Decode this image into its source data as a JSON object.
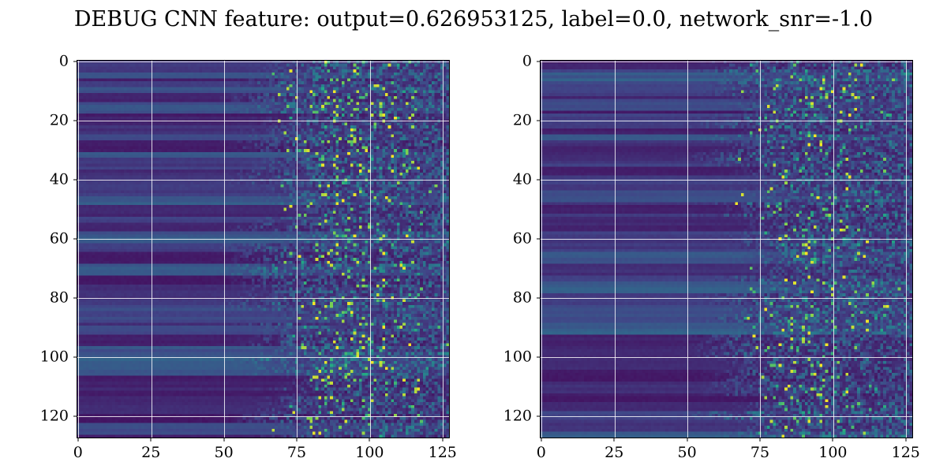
{
  "figure": {
    "title": "DEBUG CNN feature: output=0.626953125, label=0.0, network_snr=-1.0",
    "background": "#ffffff",
    "text_color": "#000000"
  },
  "chart_data": [
    {
      "type": "heatmap",
      "position": "left",
      "shape": [
        128,
        128
      ],
      "x_ticks": [
        0,
        25,
        50,
        75,
        100,
        125
      ],
      "y_ticks": [
        0,
        20,
        40,
        60,
        80,
        100,
        120
      ],
      "xlim": [
        -0.5,
        127.5
      ],
      "ylim": [
        127.5,
        -0.5
      ],
      "grid": true,
      "grid_color": "#ffffff",
      "colormap": "viridis",
      "colormap_anchors": [
        "#440154",
        "#414487",
        "#2a788e",
        "#22a884",
        "#7ad151",
        "#fde725"
      ],
      "value_range": [
        0.0,
        1.0
      ],
      "pattern": "dark purple/blue horizontal banding on left half dissolving into speckled noise toward the right; bright teal/yellow spikes densest around columns 80-110",
      "seed": 11,
      "spike_prob": 0.115
    },
    {
      "type": "heatmap",
      "position": "right",
      "shape": [
        128,
        128
      ],
      "x_ticks": [
        0,
        25,
        50,
        75,
        100,
        125
      ],
      "y_ticks": [
        0,
        20,
        40,
        60,
        80,
        100,
        120
      ],
      "xlim": [
        -0.5,
        127.5
      ],
      "ylim": [
        127.5,
        -0.5
      ],
      "grid": true,
      "grid_color": "#ffffff",
      "colormap": "viridis",
      "colormap_anchors": [
        "#440154",
        "#414487",
        "#2a788e",
        "#22a884",
        "#7ad151",
        "#fde725"
      ],
      "value_range": [
        0.0,
        1.0
      ],
      "pattern": "same banded-to-noise structure, slightly darker overall with fewer bright spikes",
      "seed": 29,
      "spike_prob": 0.08
    }
  ]
}
